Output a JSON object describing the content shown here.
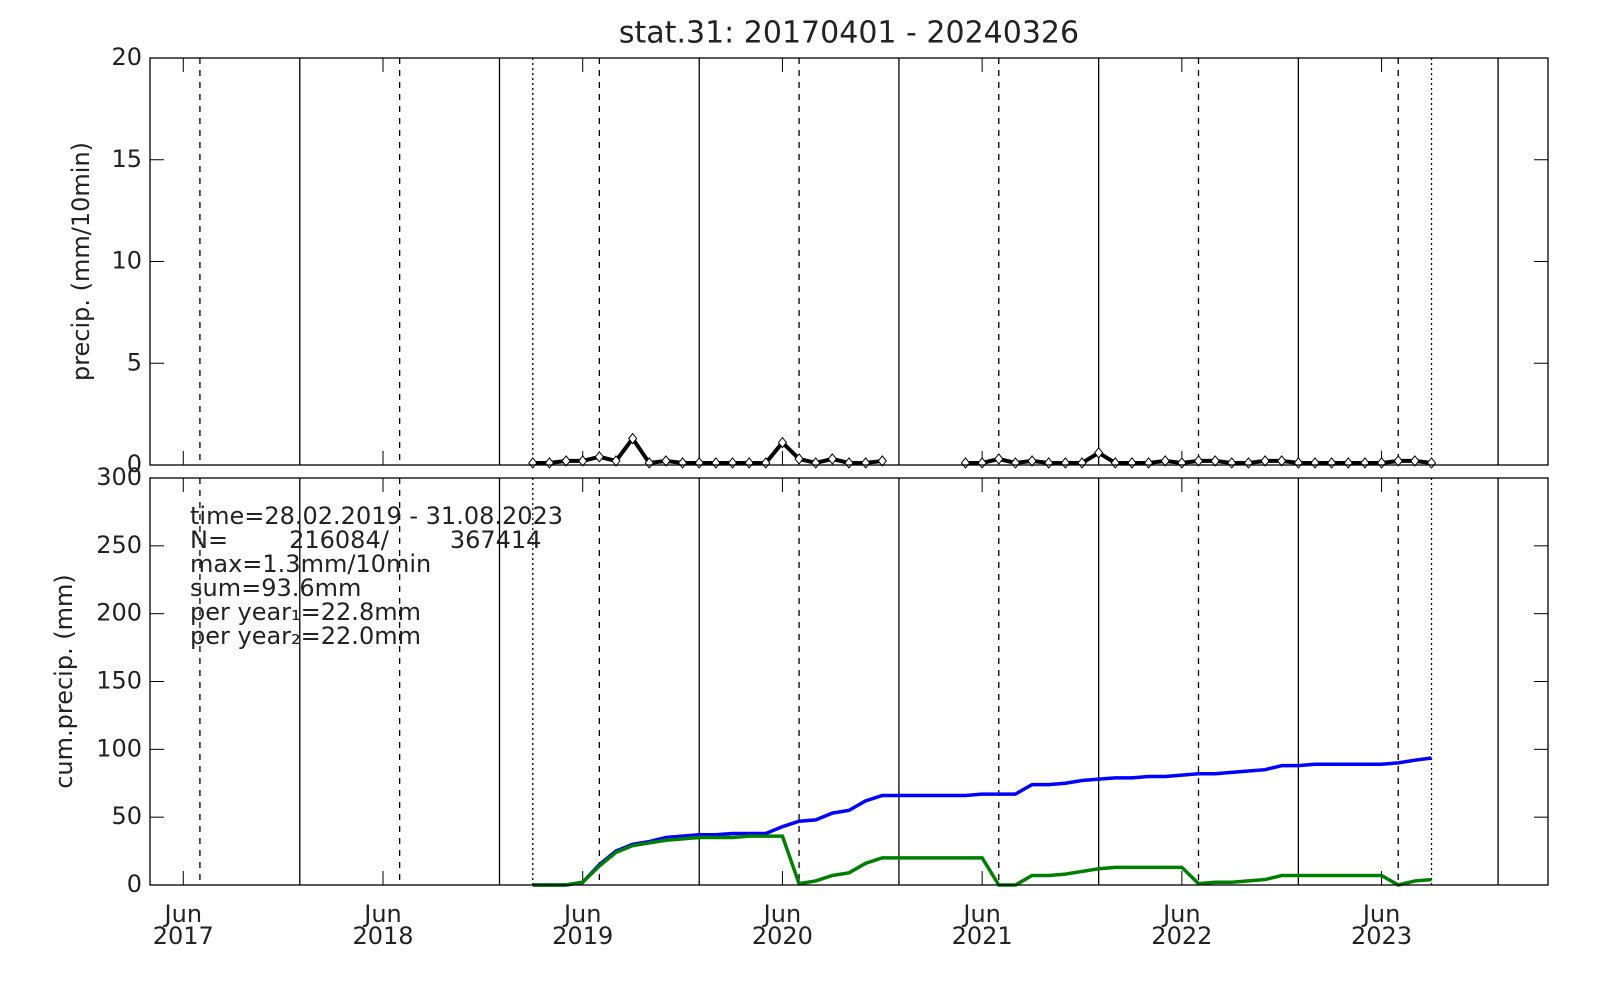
{
  "chart_data": [
    {
      "type": "line",
      "title": "stat.31: 20170401 - 20240326",
      "y_label": "precip. (mm/10min)",
      "ylim": [
        0,
        20
      ],
      "yticks": [
        0,
        5,
        10,
        15,
        20
      ],
      "markers": "diamond",
      "x": [
        "2019-03",
        "2019-04",
        "2019-05",
        "2019-06",
        "2019-07",
        "2019-08",
        "2019-09",
        "2019-10",
        "2019-11",
        "2019-12",
        "2020-01",
        "2020-02",
        "2020-03",
        "2020-04",
        "2020-05",
        "2020-06",
        "2020-07",
        "2020-08",
        "2020-09",
        "2020-10",
        "2020-11",
        "2020-12",
        "2021-01",
        "2021-02",
        "2021-03",
        "2021-04",
        "2021-05",
        "2021-06",
        "2021-07",
        "2021-08",
        "2021-09",
        "2021-10",
        "2021-11",
        "2021-12",
        "2022-01",
        "2022-02",
        "2022-03",
        "2022-04",
        "2022-05",
        "2022-06",
        "2022-07",
        "2022-08",
        "2022-09",
        "2022-10",
        "2022-11",
        "2022-12",
        "2023-01",
        "2023-02",
        "2023-03",
        "2023-04",
        "2023-05",
        "2023-06",
        "2023-07",
        "2023-08",
        "2023-09"
      ],
      "series": [
        {
          "color": "#000000",
          "values": [
            0.1,
            0.1,
            0.2,
            0.2,
            0.4,
            0.2,
            1.3,
            0.1,
            0.2,
            0.1,
            0.1,
            0.1,
            0.1,
            0.1,
            0.1,
            1.1,
            0.3,
            0.1,
            0.3,
            0.1,
            0.1,
            0.2,
            null,
            null,
            null,
            null,
            0.1,
            0.1,
            0.3,
            0.1,
            0.2,
            0.1,
            0.1,
            0.1,
            0.6,
            0.1,
            0.1,
            0.1,
            0.2,
            0.1,
            0.2,
            0.2,
            0.1,
            0.1,
            0.2,
            0.2,
            0.1,
            0.1,
            0.1,
            0.1,
            0.1,
            0.1,
            0.2,
            0.2,
            0.1
          ]
        }
      ]
    },
    {
      "type": "line",
      "y_label": "cum.precip. (mm)",
      "ylim": [
        0,
        300
      ],
      "yticks": [
        0,
        50,
        100,
        150,
        200,
        250,
        300
      ],
      "xlim": [
        "2017-04",
        "2024-04"
      ],
      "xticks": [
        {
          "value": "2017-06",
          "label": "Jun\n2017"
        },
        {
          "value": "2018-06",
          "label": "Jun\n2018"
        },
        {
          "value": "2019-06",
          "label": "Jun\n2019"
        },
        {
          "value": "2020-06",
          "label": "Jun\n2020"
        },
        {
          "value": "2021-06",
          "label": "Jun\n2021"
        },
        {
          "value": "2022-06",
          "label": "Jun\n2022"
        },
        {
          "value": "2023-06",
          "label": "Jun\n2023"
        }
      ],
      "year_lines": [
        "2018-01",
        "2019-01",
        "2020-01",
        "2021-01",
        "2022-01",
        "2023-01",
        "2024-01"
      ],
      "mid_year_lines": [
        "2017-07",
        "2018-07",
        "2019-07",
        "2020-07",
        "2021-07",
        "2022-07",
        "2023-07"
      ],
      "period_lines": [
        "2019-03",
        "2023-09"
      ],
      "annotations": [
        "time=28.02.2019 - 31.08.2023",
        "N=        216084/        367414",
        "max=1.3mm/10min",
        "sum=93.6mm",
        "per year₁=22.8mm",
        "per year₂=22.0mm"
      ],
      "x": [
        "2019-03",
        "2019-04",
        "2019-05",
        "2019-06",
        "2019-07",
        "2019-08",
        "2019-09",
        "2019-10",
        "2019-11",
        "2019-12",
        "2020-01",
        "2020-02",
        "2020-03",
        "2020-04",
        "2020-05",
        "2020-06",
        "2020-07",
        "2020-08",
        "2020-09",
        "2020-10",
        "2020-11",
        "2020-12",
        "2021-01",
        "2021-02",
        "2021-03",
        "2021-04",
        "2021-05",
        "2021-06",
        "2021-07",
        "2021-08",
        "2021-09",
        "2021-10",
        "2021-11",
        "2021-12",
        "2022-01",
        "2022-02",
        "2022-03",
        "2022-04",
        "2022-05",
        "2022-06",
        "2022-07",
        "2022-08",
        "2022-09",
        "2022-10",
        "2022-11",
        "2022-12",
        "2023-01",
        "2023-02",
        "2023-03",
        "2023-04",
        "2023-05",
        "2023-06",
        "2023-07",
        "2023-08",
        "2023-09"
      ],
      "series": [
        {
          "color": "#0000ff",
          "values": [
            0,
            0,
            0,
            2,
            15,
            25,
            30,
            32,
            35,
            36,
            37,
            37,
            38,
            38,
            38,
            43,
            47,
            48,
            53,
            55,
            62,
            66,
            66,
            66,
            66,
            66,
            66,
            67,
            67,
            67,
            74,
            74,
            75,
            77,
            78,
            79,
            79,
            80,
            80,
            81,
            82,
            82,
            83,
            84,
            85,
            88,
            88,
            89,
            89,
            89,
            89,
            89,
            90,
            92,
            93.6
          ]
        },
        {
          "color": "#008000",
          "values": [
            0,
            0,
            0,
            2,
            14,
            24,
            29,
            31,
            33,
            34,
            35,
            35,
            35,
            36,
            36,
            36,
            1,
            3,
            7,
            9,
            16,
            20,
            20,
            20,
            20,
            20,
            20,
            20,
            0,
            0,
            7,
            7,
            8,
            10,
            12,
            13,
            13,
            13,
            13,
            13,
            1,
            2,
            2,
            3,
            4,
            7,
            7,
            7,
            7,
            7,
            7,
            7,
            0,
            3,
            4
          ]
        }
      ]
    }
  ]
}
